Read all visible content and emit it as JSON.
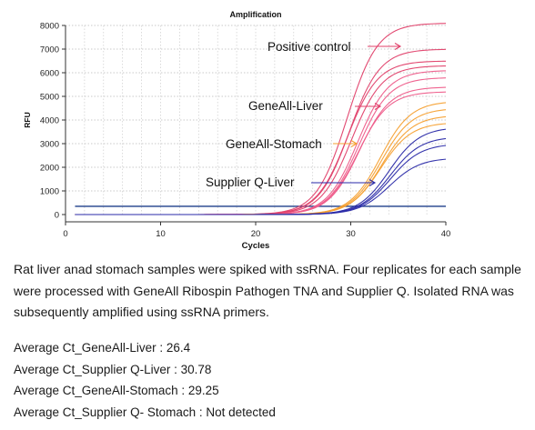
{
  "chart_data": {
    "type": "line",
    "title": "Amplification",
    "xlabel": "Cycles",
    "ylabel": "RFU",
    "xlim": [
      0,
      40
    ],
    "ylim": [
      0,
      8000
    ],
    "x_ticks": [
      "0",
      "10",
      "20",
      "30",
      "40"
    ],
    "y_ticks": [
      "0",
      "1000",
      "2000",
      "3000",
      "4000",
      "5000",
      "6000",
      "7000",
      "8000"
    ],
    "grid": true,
    "threshold": 350,
    "annotations": [
      {
        "text": "Positive control",
        "color": "#e0406a"
      },
      {
        "text": "GeneAll-Liver",
        "color": "#e0406a"
      },
      {
        "text": "GeneAll-Stomach",
        "color": "#f5a030"
      },
      {
        "text": "Supplier Q-Liver",
        "color": "#2a2aa8"
      }
    ],
    "series": [
      {
        "group": "Positive control",
        "color": "#e0406a",
        "ct": 24.6,
        "plateau": 8100
      },
      {
        "group": "Positive control",
        "color": "#e0406a",
        "ct": 25.1,
        "plateau": 7000
      },
      {
        "group": "Positive control",
        "color": "#e0406a",
        "ct": 25.5,
        "plateau": 6300
      },
      {
        "group": "Positive control",
        "color": "#e0406a",
        "ct": 25.0,
        "plateau": 6500
      },
      {
        "group": "GeneAll-Liver",
        "color": "#ee5c8a",
        "ct": 26.2,
        "plateau": 6100
      },
      {
        "group": "GeneAll-Liver",
        "color": "#ee5c8a",
        "ct": 26.4,
        "plateau": 5800
      },
      {
        "group": "GeneAll-Liver",
        "color": "#ee5c8a",
        "ct": 26.6,
        "plateau": 5400
      },
      {
        "group": "GeneAll-Liver",
        "color": "#ee5c8a",
        "ct": 26.5,
        "plateau": 5200
      },
      {
        "group": "GeneAll-Stomach",
        "color": "#f5a030",
        "ct": 29.0,
        "plateau": 4800
      },
      {
        "group": "GeneAll-Stomach",
        "color": "#f5a030",
        "ct": 29.2,
        "plateau": 4500
      },
      {
        "group": "GeneAll-Stomach",
        "color": "#f5a030",
        "ct": 29.4,
        "plateau": 4200
      },
      {
        "group": "GeneAll-Stomach",
        "color": "#f5a030",
        "ct": 29.4,
        "plateau": 3900
      },
      {
        "group": "Supplier Q-Liver",
        "color": "#2a2aa8",
        "ct": 30.4,
        "plateau": 3700
      },
      {
        "group": "Supplier Q-Liver",
        "color": "#2a2aa8",
        "ct": 30.7,
        "plateau": 3300
      },
      {
        "group": "Supplier Q-Liver",
        "color": "#2a2aa8",
        "ct": 30.9,
        "plateau": 3000
      },
      {
        "group": "Supplier Q-Liver",
        "color": "#2a2aa8",
        "ct": 31.2,
        "plateau": 2400
      }
    ]
  },
  "caption": "Rat liver anad stomach samples were spiked with ssRNA. Four replicates for each sample were processed with GeneAll Ribospin Pathogen TNA and Supplier Q. Isolated RNA was subsequently amplified using ssRNA primers.",
  "averages": [
    "Average Ct_GeneAll-Liver : 26.4",
    "Average Ct_Supplier Q-Liver : 30.78",
    "Average Ct_GeneAll-Stomach : 29.25",
    "Average Ct_Supplier Q- Stomach : Not detected"
  ]
}
